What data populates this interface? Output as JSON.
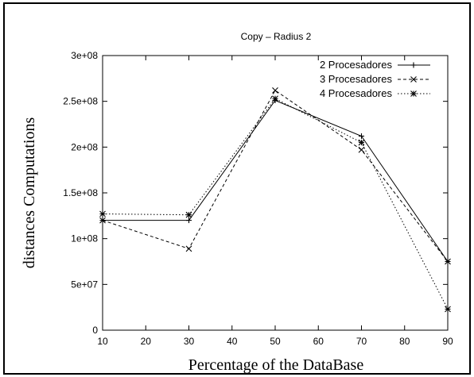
{
  "chart_data": {
    "type": "line",
    "title": "Copy – Radius 2",
    "xlabel": "Percentage of the DataBase",
    "ylabel": "distances Computations",
    "xlim": [
      10,
      90
    ],
    "ylim": [
      0,
      300000000
    ],
    "x_ticks": [
      10,
      20,
      30,
      40,
      50,
      60,
      70,
      80,
      90
    ],
    "x_tick_labels": [
      "10",
      "20",
      "30",
      "40",
      "50",
      "60",
      "70",
      "80",
      "90"
    ],
    "y_ticks": [
      0,
      50000000,
      100000000,
      150000000,
      200000000,
      250000000,
      300000000
    ],
    "y_tick_labels": [
      "0",
      "5e+07",
      "1e+08",
      "1.5e+08",
      "2e+08",
      "2.5e+08",
      "3e+08"
    ],
    "grid": false,
    "legend_position": "top-right",
    "x": [
      10,
      30,
      50,
      70,
      90
    ],
    "series": [
      {
        "name": "2 Procesadores",
        "line_style": "solid",
        "marker": "plus",
        "values": [
          120000000,
          120000000,
          251000000,
          212000000,
          75000000
        ]
      },
      {
        "name": "3 Procesadores",
        "line_style": "dashed",
        "marker": "cross",
        "values": [
          120000000,
          89000000,
          262000000,
          197000000,
          75000000
        ]
      },
      {
        "name": "4 Procesadores",
        "line_style": "dotted",
        "marker": "star",
        "values": [
          127000000,
          126000000,
          253000000,
          205000000,
          23000000
        ]
      }
    ]
  }
}
